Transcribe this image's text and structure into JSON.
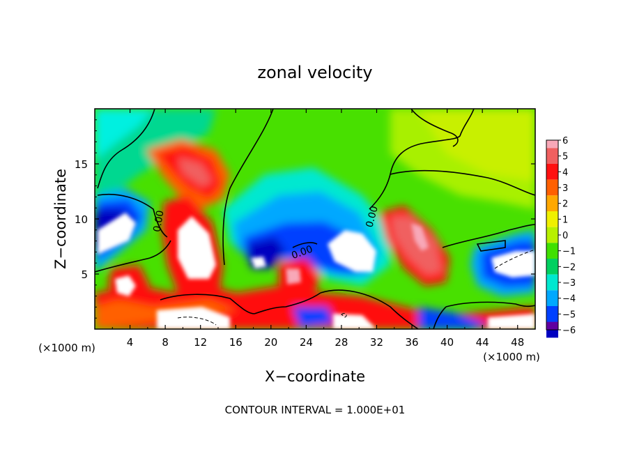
{
  "chart_data": {
    "type": "heatmap",
    "title": "zonal velocity",
    "xlabel": "X−coordinate",
    "ylabel": "Z−coordinate",
    "x_unit_left": "(×1000 m)",
    "x_unit_right": "(×1000 m)",
    "footer": "CONTOUR INTERVAL = 1.000E+01",
    "xlim": [
      0,
      50
    ],
    "ylim": [
      0,
      20
    ],
    "x_ticks": [
      4,
      8,
      12,
      16,
      20,
      24,
      28,
      32,
      36,
      40,
      44,
      48
    ],
    "y_ticks": [
      5,
      10,
      15
    ],
    "contour_labels": [
      "0.00",
      "0.00",
      "0.00"
    ],
    "colorbar": {
      "range": [
        -6,
        6
      ],
      "ticks": [
        6,
        5,
        4,
        3,
        2,
        1,
        0,
        -1,
        -2,
        -3,
        -4,
        -5,
        -6
      ],
      "tick_labels": [
        "6",
        "5",
        "4",
        "3",
        "2",
        "1",
        "0",
        "−1",
        "−2",
        "−3",
        "−4",
        "−5",
        "−6"
      ],
      "colors": [
        "#f8a8b8",
        "#f06060",
        "#ff1010",
        "#ff6000",
        "#ffa800",
        "#f0f000",
        "#b8f000",
        "#40e000",
        "#00d060",
        "#00e8d0",
        "#00a8ff",
        "#0040ff",
        "#0000c0",
        "#6000a0"
      ]
    },
    "out_of_range_color": "#ffffff"
  }
}
